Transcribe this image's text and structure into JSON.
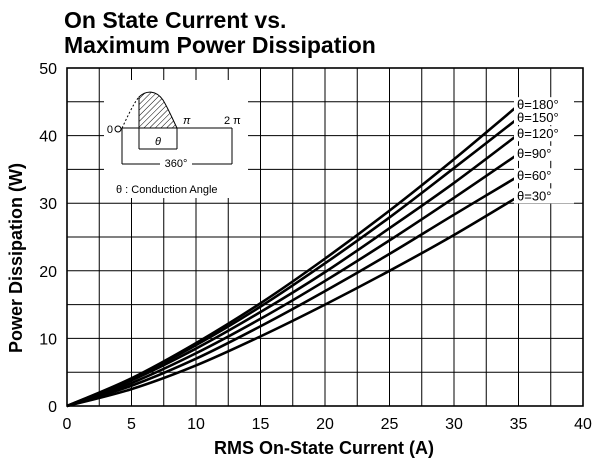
{
  "title_line1": "On State Current vs.",
  "title_line2": "Maximum Power Dissipation",
  "chart_data": {
    "type": "line",
    "xlabel": "RMS On-State Current (A)",
    "ylabel": "Power Dissipation (W)",
    "xlim": [
      0,
      40
    ],
    "ylim": [
      0,
      50
    ],
    "xticks": [
      "0",
      "5",
      "10",
      "15",
      "20",
      "25",
      "30",
      "35",
      "40"
    ],
    "yticks": [
      "0",
      "10",
      "20",
      "30",
      "40",
      "50"
    ],
    "grid": true,
    "series": [
      {
        "name": "θ=180°",
        "x": [
          0,
          5,
          10,
          15,
          20,
          25,
          30,
          35
        ],
        "y": [
          0,
          4.1,
          9.3,
          15.2,
          21.8,
          28.9,
          36.5,
          44.5
        ]
      },
      {
        "name": "θ=150°",
        "x": [
          0,
          5,
          10,
          15,
          20,
          25,
          30,
          35
        ],
        "y": [
          0,
          4.0,
          9.0,
          14.7,
          21.1,
          27.9,
          35.2,
          42.6
        ]
      },
      {
        "name": "θ=120°",
        "x": [
          0,
          5,
          10,
          15,
          20,
          25,
          30,
          35
        ],
        "y": [
          0,
          3.8,
          8.5,
          13.9,
          19.8,
          26.3,
          33.0,
          40.2
        ]
      },
      {
        "name": "θ=90°",
        "x": [
          0,
          5,
          10,
          15,
          20,
          25,
          30,
          35
        ],
        "y": [
          0,
          3.4,
          7.8,
          12.9,
          18.5,
          24.5,
          30.8,
          37.3
        ]
      },
      {
        "name": "θ=60°",
        "x": [
          0,
          5,
          10,
          15,
          20,
          25,
          30,
          35
        ],
        "y": [
          0,
          3.0,
          7.0,
          11.8,
          17.0,
          22.5,
          28.3,
          34.0
        ]
      },
      {
        "name": "θ=30°",
        "x": [
          0,
          5,
          10,
          15,
          20,
          25,
          30,
          35
        ],
        "y": [
          0,
          2.5,
          6.0,
          10.3,
          15.0,
          20.0,
          25.3,
          31.0
        ]
      }
    ],
    "inset": {
      "theta_symbol": "θ",
      "pi_label": "π",
      "two_pi_label": "2 π",
      "degree_label": "360°",
      "zero_label": "0",
      "caption": "θ : Conduction Angle"
    }
  }
}
